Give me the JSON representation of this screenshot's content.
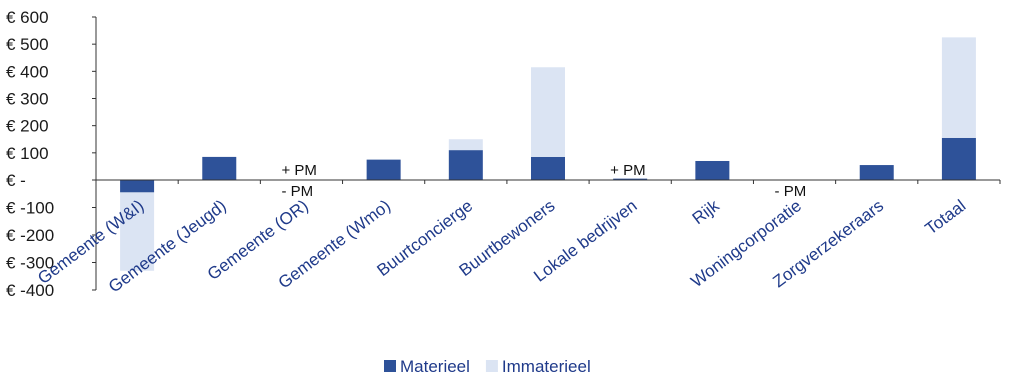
{
  "chart_data": {
    "type": "bar",
    "stacked": true,
    "categories": [
      "Gemeente (W&I)",
      "Gemeente (Jeugd)",
      "Gemeente (OR)",
      "Gemeente (Wmo)",
      "Buurtconcierge",
      "Buurtbewoners",
      "Lokale bedrijven",
      "Rijk",
      "Woningcorporatie",
      "Zorgverzekeraars",
      "Totaal"
    ],
    "series": [
      {
        "name": "Materieel",
        "color": "#2e5299",
        "values": [
          -45,
          85,
          0,
          75,
          110,
          85,
          5,
          70,
          0,
          55,
          155
        ]
      },
      {
        "name": "Immaterieel",
        "color": "#dbe4f3",
        "values": [
          -285,
          0,
          0,
          0,
          40,
          330,
          0,
          0,
          0,
          0,
          370
        ]
      }
    ],
    "annotations": [
      {
        "category": "Gemeente (OR)",
        "above": "+ PM",
        "below": "- PM"
      },
      {
        "category": "Lokale bedrijven",
        "above": "+ PM",
        "below": ""
      },
      {
        "category": "Woningcorporatie",
        "above": "",
        "below": "- PM"
      }
    ],
    "ylim": [
      -400,
      600
    ],
    "yticks": [
      600,
      500,
      400,
      300,
      200,
      100,
      0,
      -100,
      -200,
      -300,
      -400
    ],
    "ytick_labels": [
      "€ 600",
      "€ 500",
      "€ 400",
      "€ 300",
      "€ 200",
      "€ 100",
      "€ -",
      "€ -100",
      "€ -200",
      "€ -300",
      "€ -400"
    ],
    "grid": false,
    "legend_position": "bottom",
    "title": "",
    "xlabel": "",
    "ylabel": ""
  }
}
